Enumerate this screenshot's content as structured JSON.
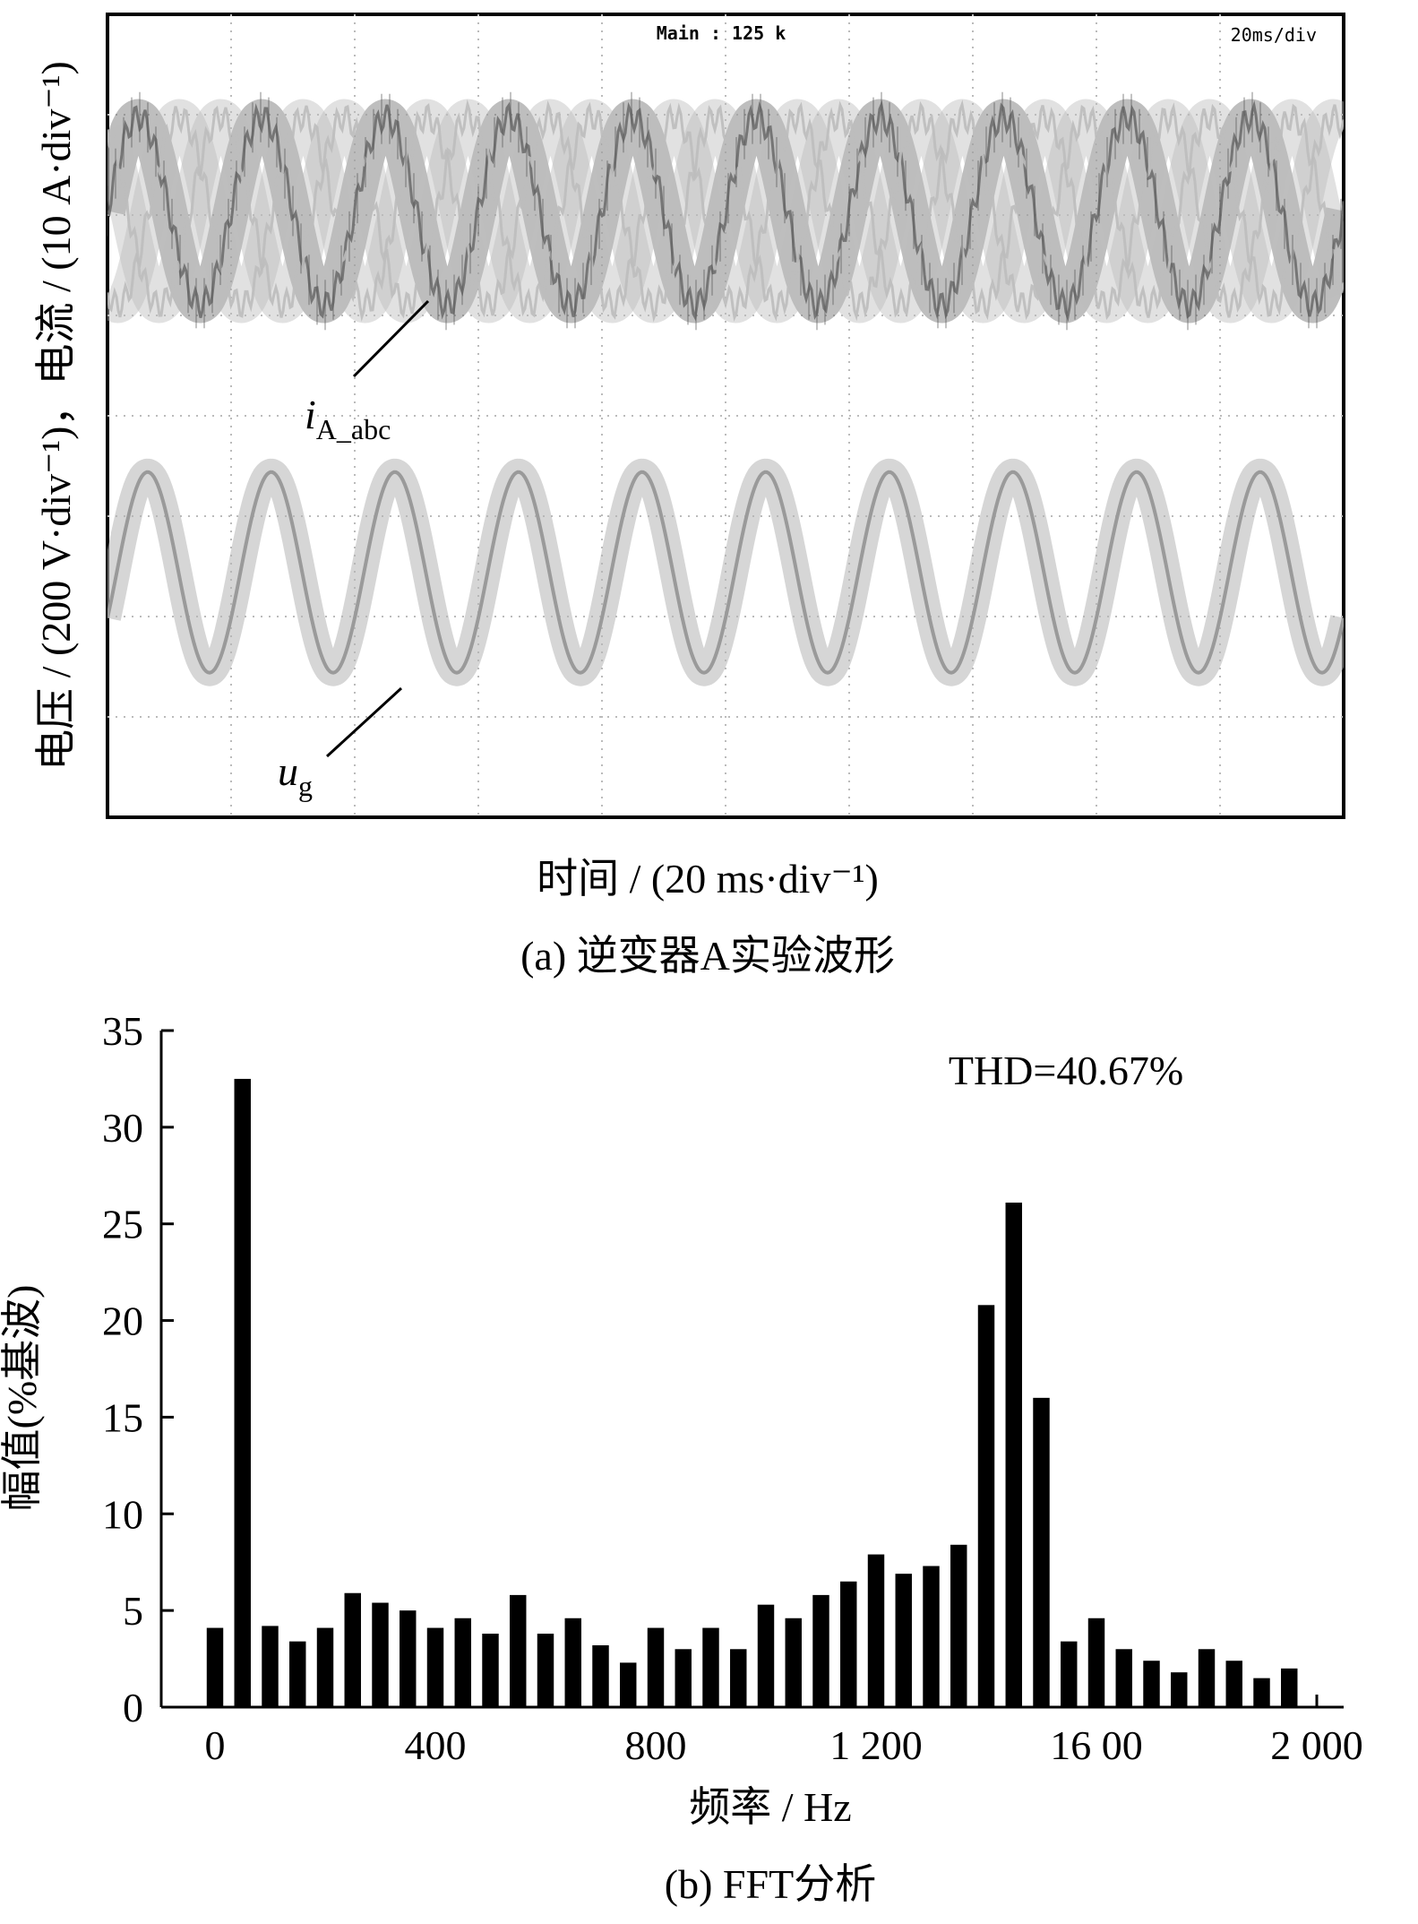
{
  "scope": {
    "header_main": "Main : 125 k",
    "header_timebase": "20ms/div",
    "ylabel": "电压 / (200 V·div⁻¹)，电流 / (10 A·div⁻¹)",
    "xlabel": "时间 / (20 ms·div⁻¹)",
    "label_current": "i",
    "label_current_sub": "A_abc",
    "label_voltage": "u",
    "label_voltage_sub": "g",
    "caption": "(a)  逆变器A实验波形",
    "colors": {
      "voltage": "#b5b5b5",
      "current_dark": "#6e6e6e",
      "current_light": "#bdbdbd",
      "grid": "#bbbbbb"
    }
  },
  "chart_data": {
    "type": "bar",
    "title": "",
    "annotation": "THD=40.67%",
    "xlabel": "频率 / Hz",
    "ylabel": "幅值(%基波)",
    "caption": "(b)  FFT分析",
    "xlim": [
      0,
      2000
    ],
    "ylim": [
      0,
      35
    ],
    "xticks": [
      {
        "value": 0,
        "label": "0"
      },
      {
        "value": 400,
        "label": "400"
      },
      {
        "value": 800,
        "label": "800"
      },
      {
        "value": 1200,
        "label": "1 200"
      },
      {
        "value": 1600,
        "label": "16 00"
      },
      {
        "value": 2000,
        "label": "2 000"
      }
    ],
    "yticks": [
      0,
      5,
      10,
      15,
      20,
      25,
      30,
      35
    ],
    "bar_color": "#000000",
    "bars": [
      {
        "x": 0,
        "value": 4.1
      },
      {
        "x": 50,
        "value": 32.5
      },
      {
        "x": 100,
        "value": 4.2
      },
      {
        "x": 150,
        "value": 3.4
      },
      {
        "x": 200,
        "value": 4.1
      },
      {
        "x": 250,
        "value": 5.9
      },
      {
        "x": 300,
        "value": 5.4
      },
      {
        "x": 350,
        "value": 5.0
      },
      {
        "x": 400,
        "value": 4.1
      },
      {
        "x": 450,
        "value": 4.6
      },
      {
        "x": 500,
        "value": 3.8
      },
      {
        "x": 550,
        "value": 5.8
      },
      {
        "x": 600,
        "value": 3.8
      },
      {
        "x": 650,
        "value": 4.6
      },
      {
        "x": 700,
        "value": 3.2
      },
      {
        "x": 750,
        "value": 2.3
      },
      {
        "x": 800,
        "value": 4.1
      },
      {
        "x": 850,
        "value": 3.0
      },
      {
        "x": 900,
        "value": 4.1
      },
      {
        "x": 950,
        "value": 3.0
      },
      {
        "x": 1000,
        "value": 5.3
      },
      {
        "x": 1050,
        "value": 4.6
      },
      {
        "x": 1100,
        "value": 5.8
      },
      {
        "x": 1150,
        "value": 6.5
      },
      {
        "x": 1200,
        "value": 7.9
      },
      {
        "x": 1250,
        "value": 6.9
      },
      {
        "x": 1300,
        "value": 7.3
      },
      {
        "x": 1350,
        "value": 8.4
      },
      {
        "x": 1400,
        "value": 20.8
      },
      {
        "x": 1450,
        "value": 26.1
      },
      {
        "x": 1500,
        "value": 16.0
      },
      {
        "x": 1550,
        "value": 3.4
      },
      {
        "x": 1600,
        "value": 4.6
      },
      {
        "x": 1650,
        "value": 3.0
      },
      {
        "x": 1700,
        "value": 2.4
      },
      {
        "x": 1750,
        "value": 1.8
      },
      {
        "x": 1800,
        "value": 3.0
      },
      {
        "x": 1850,
        "value": 2.4
      },
      {
        "x": 1900,
        "value": 1.5
      },
      {
        "x": 1950,
        "value": 2.0
      }
    ]
  }
}
